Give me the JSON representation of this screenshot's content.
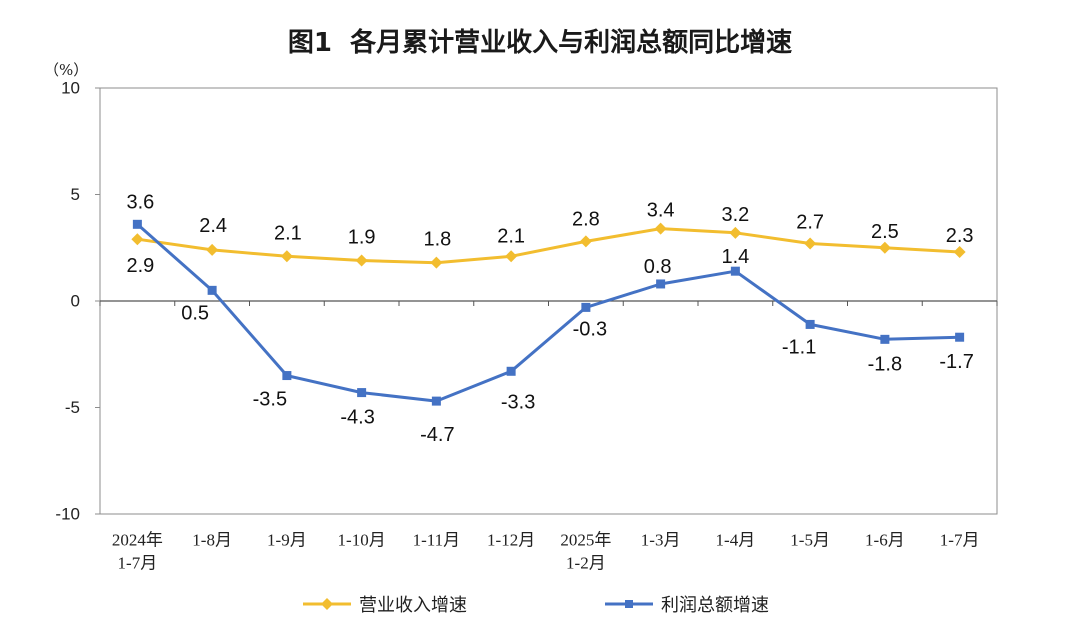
{
  "chart_data": {
    "type": "line",
    "title": "图1  各月累计营业收入与利润总额同比增速",
    "xlabel": "",
    "ylabel": "（%）",
    "ylim": [
      -10,
      10
    ],
    "yticks": [
      10,
      5,
      0,
      -5,
      -10
    ],
    "grid": false,
    "legend": "bottom-center",
    "categories": [
      [
        "2024年",
        "1-7月"
      ],
      [
        "1-8月"
      ],
      [
        "1-9月"
      ],
      [
        "1-10月"
      ],
      [
        "1-11月"
      ],
      [
        "1-12月"
      ],
      [
        "2025年",
        "1-2月"
      ],
      [
        "1-3月"
      ],
      [
        "1-4月"
      ],
      [
        "1-5月"
      ],
      [
        "1-6月"
      ],
      [
        "1-7月"
      ]
    ],
    "series": [
      {
        "name": "营业收入增速",
        "color": "#F2BD2F",
        "marker": "diamond",
        "values": [
          2.9,
          2.4,
          2.1,
          1.9,
          1.8,
          2.1,
          2.8,
          3.4,
          3.2,
          2.7,
          2.5,
          2.3
        ]
      },
      {
        "name": "利润总额增速",
        "color": "#4472C4",
        "marker": "square",
        "values": [
          3.6,
          0.5,
          -3.5,
          -4.3,
          -4.7,
          -3.3,
          -0.3,
          0.8,
          1.4,
          -1.1,
          -1.8,
          -1.7
        ]
      }
    ]
  }
}
